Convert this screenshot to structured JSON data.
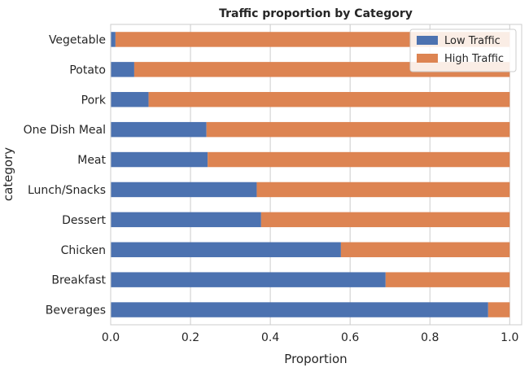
{
  "chart_data": {
    "type": "bar",
    "orientation": "horizontal",
    "stacked": true,
    "title": "Traffic proportion by Category",
    "xlabel": "Proportion",
    "ylabel": "category",
    "xlim": [
      0,
      1.03
    ],
    "xticks": [
      "0.0",
      "0.2",
      "0.4",
      "0.6",
      "0.8",
      "1.0"
    ],
    "grid": true,
    "legend_position": "top-right",
    "categories": [
      "Beverages",
      "Breakfast",
      "Chicken",
      "Dessert",
      "Lunch/Snacks",
      "Meat",
      "One Dish Meal",
      "Pork",
      "Potato",
      "Vegetable"
    ],
    "series": [
      {
        "name": "Low Traffic",
        "color": "#4c72b0",
        "values": [
          0.946,
          0.689,
          0.577,
          0.377,
          0.366,
          0.243,
          0.24,
          0.095,
          0.059,
          0.012
        ]
      },
      {
        "name": "High Traffic",
        "color": "#dd8452",
        "values": [
          0.054,
          0.311,
          0.423,
          0.623,
          0.634,
          0.757,
          0.76,
          0.905,
          0.941,
          0.988
        ]
      }
    ]
  }
}
